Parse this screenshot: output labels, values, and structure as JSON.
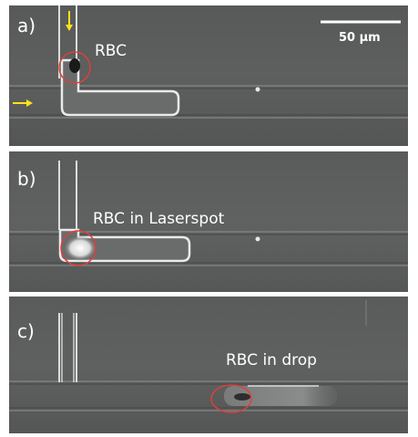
{
  "panels": [
    {
      "label": "a)",
      "annotation": "RBC"
    },
    {
      "label": "b)",
      "annotation": "RBC in Laserspot"
    },
    {
      "label": "c)",
      "annotation": "RBC in drop"
    }
  ],
  "scale_bar": {
    "label": "50 µm"
  },
  "colors": {
    "background": "#595a5a",
    "channel_wall": "#e6e6e6",
    "marker_circle": "#d9423b",
    "flow_arrow": "#ffe21a"
  }
}
